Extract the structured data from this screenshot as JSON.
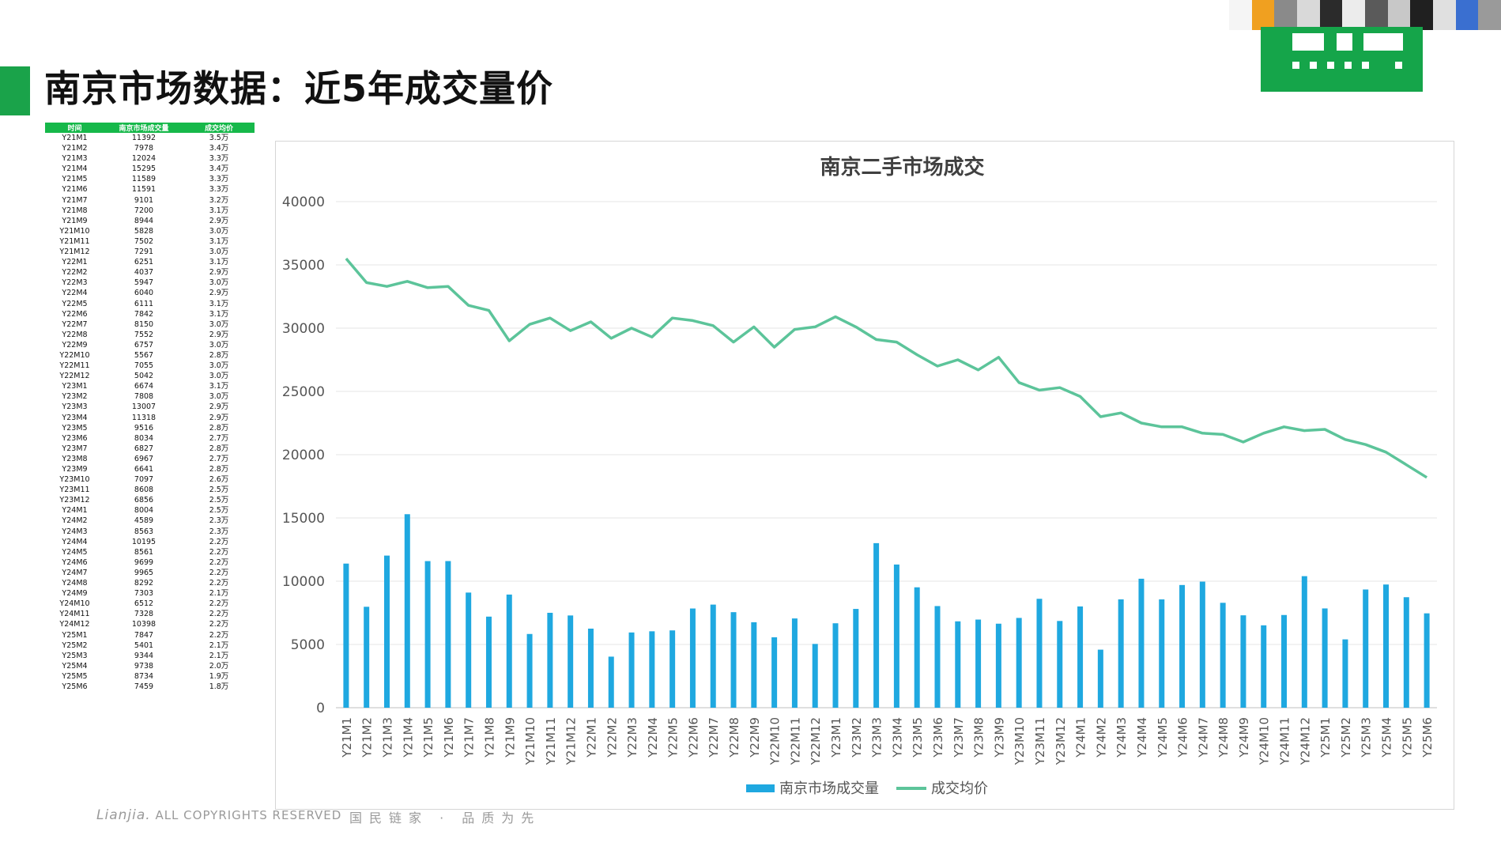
{
  "page": {
    "title": "南京市场数据：近5年成交量价",
    "footer_brand": "Lianjia.",
    "footer_copyright": "ALL COPYRIGHTS RESERVED",
    "footer_slogan": "国民链家 · 品质为先"
  },
  "colors": {
    "accent": "#1aa34a",
    "bar": "#1fa8e0",
    "line": "#5cc49a",
    "table_header": "#16b84a"
  },
  "table": {
    "headers": [
      "时间",
      "南京市场成交量",
      "成交均价"
    ],
    "rows": [
      [
        "Y21M1",
        "11392",
        "3.5万"
      ],
      [
        "Y21M2",
        "7978",
        "3.4万"
      ],
      [
        "Y21M3",
        "12024",
        "3.3万"
      ],
      [
        "Y21M4",
        "15295",
        "3.4万"
      ],
      [
        "Y21M5",
        "11589",
        "3.3万"
      ],
      [
        "Y21M6",
        "11591",
        "3.3万"
      ],
      [
        "Y21M7",
        "9101",
        "3.2万"
      ],
      [
        "Y21M8",
        "7200",
        "3.1万"
      ],
      [
        "Y21M9",
        "8944",
        "2.9万"
      ],
      [
        "Y21M10",
        "5828",
        "3.0万"
      ],
      [
        "Y21M11",
        "7502",
        "3.1万"
      ],
      [
        "Y21M12",
        "7291",
        "3.0万"
      ],
      [
        "Y22M1",
        "6251",
        "3.1万"
      ],
      [
        "Y22M2",
        "4037",
        "2.9万"
      ],
      [
        "Y22M3",
        "5947",
        "3.0万"
      ],
      [
        "Y22M4",
        "6040",
        "2.9万"
      ],
      [
        "Y22M5",
        "6111",
        "3.1万"
      ],
      [
        "Y22M6",
        "7842",
        "3.1万"
      ],
      [
        "Y22M7",
        "8150",
        "3.0万"
      ],
      [
        "Y22M8",
        "7552",
        "2.9万"
      ],
      [
        "Y22M9",
        "6757",
        "3.0万"
      ],
      [
        "Y22M10",
        "5567",
        "2.8万"
      ],
      [
        "Y22M11",
        "7055",
        "3.0万"
      ],
      [
        "Y22M12",
        "5042",
        "3.0万"
      ],
      [
        "Y23M1",
        "6674",
        "3.1万"
      ],
      [
        "Y23M2",
        "7808",
        "3.0万"
      ],
      [
        "Y23M3",
        "13007",
        "2.9万"
      ],
      [
        "Y23M4",
        "11318",
        "2.9万"
      ],
      [
        "Y23M5",
        "9516",
        "2.8万"
      ],
      [
        "Y23M6",
        "8034",
        "2.7万"
      ],
      [
        "Y23M7",
        "6827",
        "2.8万"
      ],
      [
        "Y23M8",
        "6967",
        "2.7万"
      ],
      [
        "Y23M9",
        "6641",
        "2.8万"
      ],
      [
        "Y23M10",
        "7097",
        "2.6万"
      ],
      [
        "Y23M11",
        "8608",
        "2.5万"
      ],
      [
        "Y23M12",
        "6856",
        "2.5万"
      ],
      [
        "Y24M1",
        "8004",
        "2.5万"
      ],
      [
        "Y24M2",
        "4589",
        "2.3万"
      ],
      [
        "Y24M3",
        "8563",
        "2.3万"
      ],
      [
        "Y24M4",
        "10195",
        "2.2万"
      ],
      [
        "Y24M5",
        "8561",
        "2.2万"
      ],
      [
        "Y24M6",
        "9699",
        "2.2万"
      ],
      [
        "Y24M7",
        "9965",
        "2.2万"
      ],
      [
        "Y24M8",
        "8292",
        "2.2万"
      ],
      [
        "Y24M9",
        "7303",
        "2.1万"
      ],
      [
        "Y24M10",
        "6512",
        "2.2万"
      ],
      [
        "Y24M11",
        "7328",
        "2.2万"
      ],
      [
        "Y24M12",
        "10398",
        "2.2万"
      ],
      [
        "Y25M1",
        "7847",
        "2.2万"
      ],
      [
        "Y25M2",
        "5401",
        "2.1万"
      ],
      [
        "Y25M3",
        "9344",
        "2.1万"
      ],
      [
        "Y25M4",
        "9738",
        "2.0万"
      ],
      [
        "Y25M5",
        "8734",
        "1.9万"
      ],
      [
        "Y25M6",
        "7459",
        "1.8万"
      ]
    ]
  },
  "chart_data": {
    "type": "bar",
    "title": "南京二手市场成交",
    "xlabel": "",
    "ylabel": "",
    "ylim": [
      0,
      40000
    ],
    "yticks": [
      "0",
      "5000",
      "10000",
      "15000",
      "20000",
      "25000",
      "30000",
      "35000",
      "40000"
    ],
    "grid": true,
    "legend_position": "bottom",
    "categories": [
      "Y21M1",
      "Y21M2",
      "Y21M3",
      "Y21M4",
      "Y21M5",
      "Y21M6",
      "Y21M7",
      "Y21M8",
      "Y21M9",
      "Y21M10",
      "Y21M11",
      "Y21M12",
      "Y22M1",
      "Y22M2",
      "Y22M3",
      "Y22M4",
      "Y22M5",
      "Y22M6",
      "Y22M7",
      "Y22M8",
      "Y22M9",
      "Y22M10",
      "Y22M11",
      "Y22M12",
      "Y23M1",
      "Y23M2",
      "Y23M3",
      "Y23M4",
      "Y23M5",
      "Y23M6",
      "Y23M7",
      "Y23M8",
      "Y23M9",
      "Y23M10",
      "Y23M11",
      "Y23M12",
      "Y24M1",
      "Y24M2",
      "Y24M3",
      "Y24M4",
      "Y24M5",
      "Y24M6",
      "Y24M7",
      "Y24M8",
      "Y24M9",
      "Y24M10",
      "Y24M11",
      "Y24M12",
      "Y25M1",
      "Y25M2",
      "Y25M3",
      "Y25M4",
      "Y25M5",
      "Y25M6"
    ],
    "series": [
      {
        "name": "南京市场成交量",
        "type": "bar",
        "color": "#1fa8e0",
        "values": [
          11392,
          7978,
          12024,
          15295,
          11589,
          11591,
          9101,
          7200,
          8944,
          5828,
          7502,
          7291,
          6251,
          4037,
          5947,
          6040,
          6111,
          7842,
          8150,
          7552,
          6757,
          5567,
          7055,
          5042,
          6674,
          7808,
          13007,
          11318,
          9516,
          8034,
          6827,
          6967,
          6641,
          7097,
          8608,
          6856,
          8004,
          4589,
          8563,
          10195,
          8561,
          9699,
          9965,
          8292,
          7303,
          6512,
          7328,
          10398,
          7847,
          5401,
          9344,
          9738,
          8734,
          7459
        ]
      },
      {
        "name": "成交均价",
        "type": "line",
        "color": "#5cc49a",
        "values": [
          35500,
          33600,
          33300,
          33700,
          33200,
          33300,
          31800,
          31400,
          29000,
          30300,
          30800,
          29800,
          30500,
          29200,
          30000,
          29300,
          30800,
          30600,
          30200,
          28900,
          30100,
          28500,
          29900,
          30100,
          30900,
          30100,
          29100,
          28900,
          27900,
          27000,
          27500,
          26700,
          27700,
          25700,
          25100,
          25300,
          24600,
          23000,
          23300,
          22500,
          22200,
          22200,
          21700,
          21600,
          21000,
          21700,
          22200,
          21900,
          22000,
          21200,
          20800,
          20200,
          19200,
          18200
        ]
      }
    ]
  }
}
